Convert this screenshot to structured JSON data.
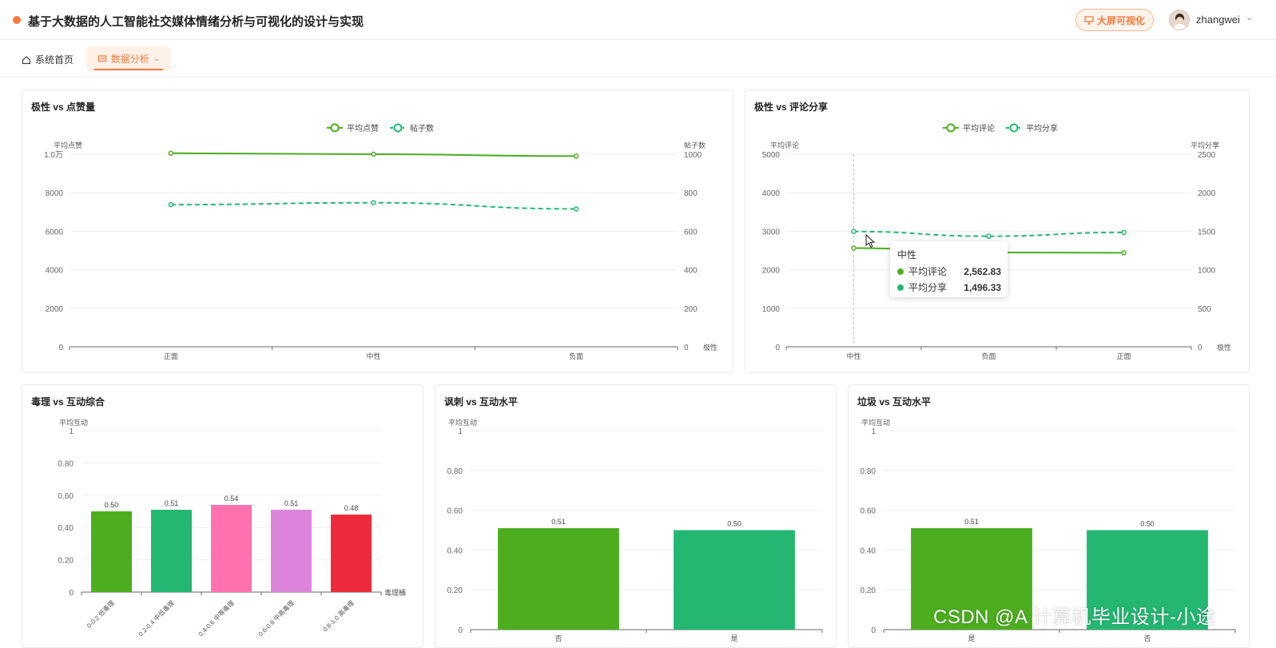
{
  "header": {
    "title": "基于大数据的人工智能社交媒体情绪分析与可视化的设计与实现",
    "bigscreen_label": "大屏可视化",
    "username": "zhangwei"
  },
  "nav": {
    "home_label": "系统首页",
    "analysis_label": "数据分析"
  },
  "cards": {
    "c1_title": "极性 vs 点赞量",
    "c2_title": "极性 vs 评论分享",
    "c3_title": "毒理 vs 互动综合",
    "c4_title": "讽刺 vs 互动水平",
    "c5_title": "垃圾 vs 互动水平"
  },
  "tooltip": {
    "category": "中性",
    "rows": [
      {
        "name": "平均评论",
        "value": "2,562.83"
      },
      {
        "name": "平均分享",
        "value": "1,496.33"
      }
    ]
  },
  "watermark": "CSDN @A 计算机毕业设计-小途",
  "colors": {
    "accent": "#f47a3c",
    "green": "#4cae1f",
    "teal": "#23b772",
    "pink": "#ff71ae",
    "violet": "#dd83dc",
    "red": "#ec2a3b"
  },
  "chart_data": [
    {
      "type": "line",
      "title": "极性 vs 点赞量",
      "categories": [
        "正面",
        "中性",
        "负面"
      ],
      "xlabel": "极性",
      "ylabel": "平均点赞",
      "ylim": [
        0,
        10000
      ],
      "yticks": [
        "0",
        "2000",
        "4000",
        "6000",
        "8000",
        "1.0万"
      ],
      "y2label": "帖子数",
      "y2lim": [
        0,
        1000
      ],
      "y2ticks": [
        "0",
        "200",
        "400",
        "600",
        "800",
        "1000"
      ],
      "series": [
        {
          "name": "平均点赞",
          "axis": "left",
          "style": "solid",
          "color": "#4cae1f",
          "values": [
            10050,
            10000,
            9900
          ]
        },
        {
          "name": "帖子数",
          "axis": "right",
          "style": "dashed",
          "color": "#23b772",
          "values": [
            738,
            748,
            716
          ]
        }
      ],
      "legend": "top-center"
    },
    {
      "type": "line",
      "title": "极性 vs 评论分享",
      "categories": [
        "中性",
        "负面",
        "正面"
      ],
      "xlabel": "极性",
      "ylabel": "平均评论",
      "ylim": [
        0,
        5000
      ],
      "yticks": [
        "0",
        "1000",
        "2000",
        "3000",
        "4000",
        "5000"
      ],
      "y2label": "平均分享",
      "y2lim": [
        0,
        2500
      ],
      "y2ticks": [
        "0",
        "500",
        "1000",
        "1500",
        "2000",
        "2500"
      ],
      "series": [
        {
          "name": "平均评论",
          "axis": "left",
          "style": "solid",
          "color": "#4cae1f",
          "values": [
            2562.83,
            2450,
            2440
          ]
        },
        {
          "name": "平均分享",
          "axis": "right",
          "style": "dashed",
          "color": "#23b772",
          "values": [
            1496.33,
            1435,
            1485
          ]
        }
      ],
      "legend": "top-center"
    },
    {
      "type": "bar",
      "title": "毒理 vs 互动综合",
      "categories": [
        "0-0.2 低毒理",
        "0.2-0.4 中低毒理",
        "0.4-0.6 中等毒理",
        "0.6-0.8 中高毒理",
        "0.8-1.0 高毒理"
      ],
      "values": [
        0.5,
        0.51,
        0.54,
        0.51,
        0.48
      ],
      "labels": [
        "0.50",
        "0.51",
        "0.54",
        "0.51",
        "0.48"
      ],
      "colors": [
        "#4cae1f",
        "#23b772",
        "#ff71ae",
        "#dd83dc",
        "#ec2a3b"
      ],
      "xlabel": "毒理桶",
      "ylabel": "平均互动",
      "ylim": [
        0,
        1
      ],
      "yticks": [
        "0",
        "0.20",
        "0.40",
        "0.60",
        "0.80",
        "1"
      ]
    },
    {
      "type": "bar",
      "title": "讽刺 vs 互动水平",
      "categories": [
        "否",
        "是"
      ],
      "values": [
        0.51,
        0.5
      ],
      "labels": [
        "0.51",
        "0.50"
      ],
      "colors": [
        "#4cae1f",
        "#23b772"
      ],
      "ylabel": "平均互动",
      "ylim": [
        0,
        1
      ],
      "yticks": [
        "0",
        "0.20",
        "0.40",
        "0.60",
        "0.80",
        "1"
      ]
    },
    {
      "type": "bar",
      "title": "垃圾 vs 互动水平",
      "categories": [
        "是",
        "否"
      ],
      "values": [
        0.51,
        0.5
      ],
      "labels": [
        "0.51",
        "0.50"
      ],
      "colors": [
        "#4cae1f",
        "#23b772"
      ],
      "ylabel": "平均互动",
      "ylim": [
        0,
        1
      ],
      "yticks": [
        "0",
        "0.20",
        "0.40",
        "0.60",
        "0.80",
        "1"
      ]
    }
  ]
}
